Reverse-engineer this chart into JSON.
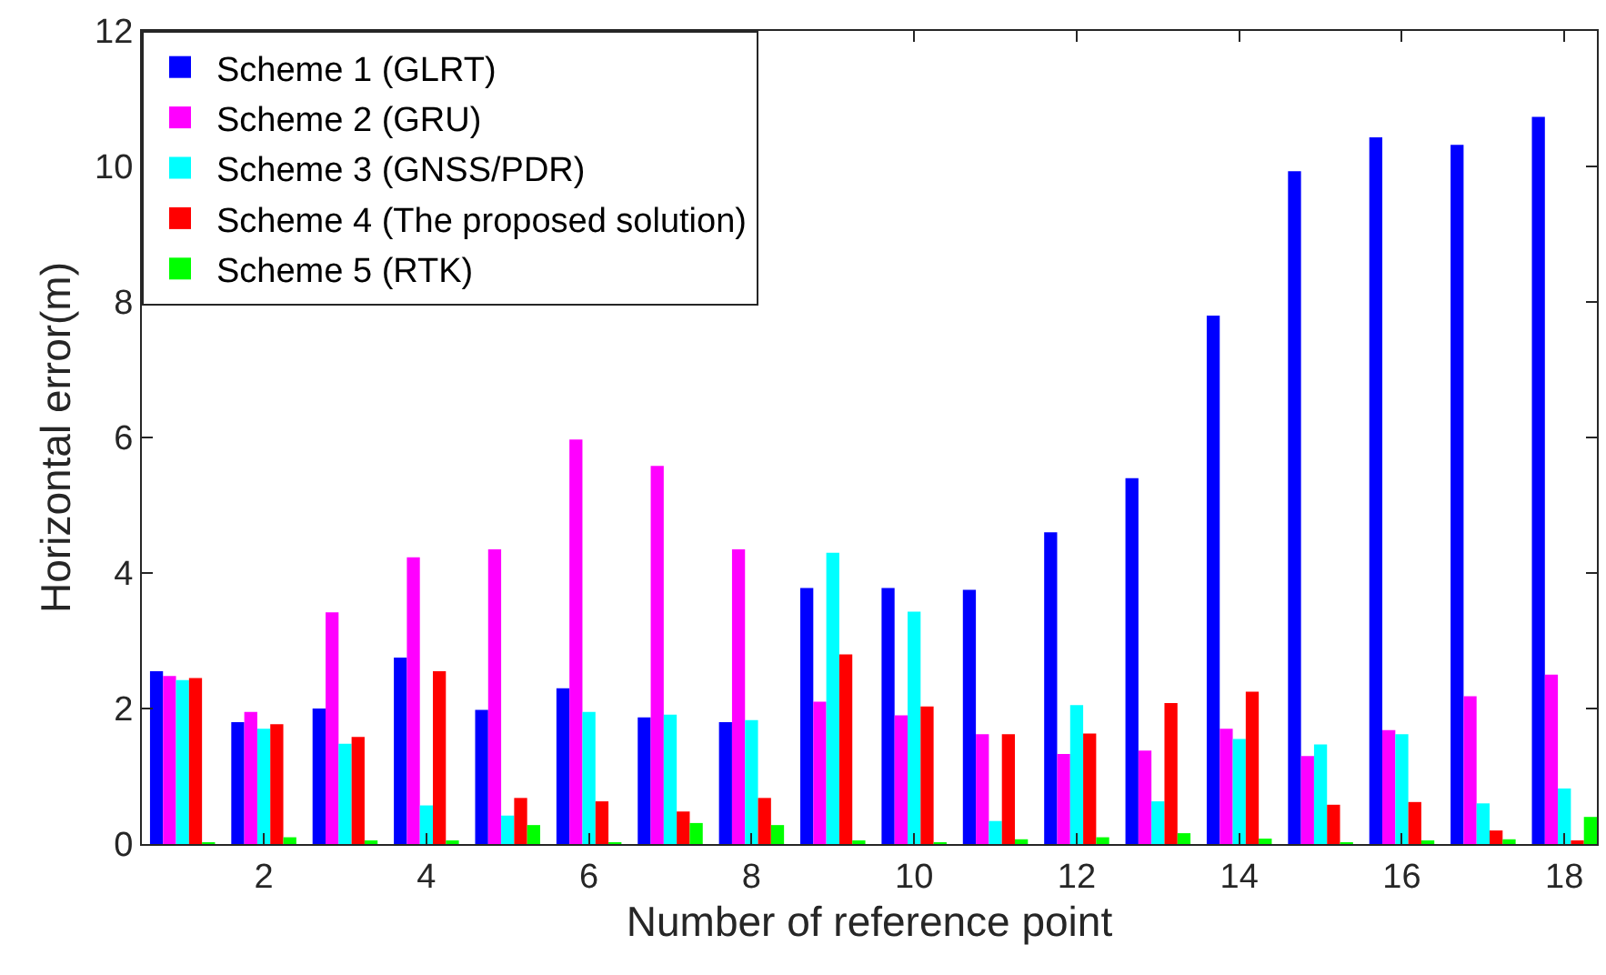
{
  "chart_data": {
    "type": "bar",
    "xlabel": "Number of reference point",
    "ylabel": "Horizontal error(m)",
    "x": [
      1,
      2,
      3,
      4,
      5,
      6,
      7,
      8,
      9,
      10,
      11,
      12,
      13,
      14,
      15,
      16,
      17,
      18
    ],
    "series": [
      {
        "name": "Scheme 1 (GLRT)",
        "color": "#0000ff",
        "values": [
          2.55,
          1.8,
          2.0,
          2.75,
          1.98,
          2.3,
          1.87,
          1.8,
          3.78,
          3.78,
          3.75,
          4.6,
          5.4,
          7.8,
          9.93,
          10.43,
          10.32,
          10.73
        ]
      },
      {
        "name": "Scheme 2 (GRU)",
        "color": "#ff00ff",
        "values": [
          2.48,
          1.95,
          3.42,
          4.23,
          4.35,
          5.97,
          5.58,
          4.35,
          2.1,
          1.9,
          1.62,
          1.33,
          1.38,
          1.7,
          1.3,
          1.68,
          2.18,
          2.5
        ]
      },
      {
        "name": "Scheme 3 (GNSS/PDR)",
        "color": "#00ffff",
        "values": [
          2.42,
          1.7,
          1.48,
          0.57,
          0.42,
          1.95,
          1.91,
          1.83,
          4.3,
          3.43,
          0.34,
          2.05,
          0.63,
          1.55,
          1.47,
          1.62,
          0.6,
          0.82
        ]
      },
      {
        "name": "Scheme 4 (The proposed solution)",
        "color": "#ff0000",
        "values": [
          2.45,
          1.77,
          1.58,
          2.55,
          0.68,
          0.63,
          0.48,
          0.68,
          2.8,
          2.03,
          1.62,
          1.63,
          2.08,
          2.25,
          0.58,
          0.62,
          0.2,
          0.05
        ]
      },
      {
        "name": "Scheme 5 (RTK)",
        "color": "#00ff00",
        "values": [
          0.02,
          0.1,
          0.03,
          0.04,
          0.28,
          0.02,
          0.31,
          0.28,
          0.03,
          0.02,
          0.07,
          0.1,
          0.16,
          0.08,
          0.02,
          0.05,
          0.07,
          0.4
        ]
      }
    ],
    "xlim": [
      0.5,
      18.4
    ],
    "xticks": [
      2,
      4,
      6,
      8,
      10,
      12,
      14,
      16,
      18
    ],
    "ylim": [
      0,
      12
    ],
    "yticks": [
      0,
      2,
      4,
      6,
      8,
      10,
      12
    ],
    "legend": "top left"
  }
}
